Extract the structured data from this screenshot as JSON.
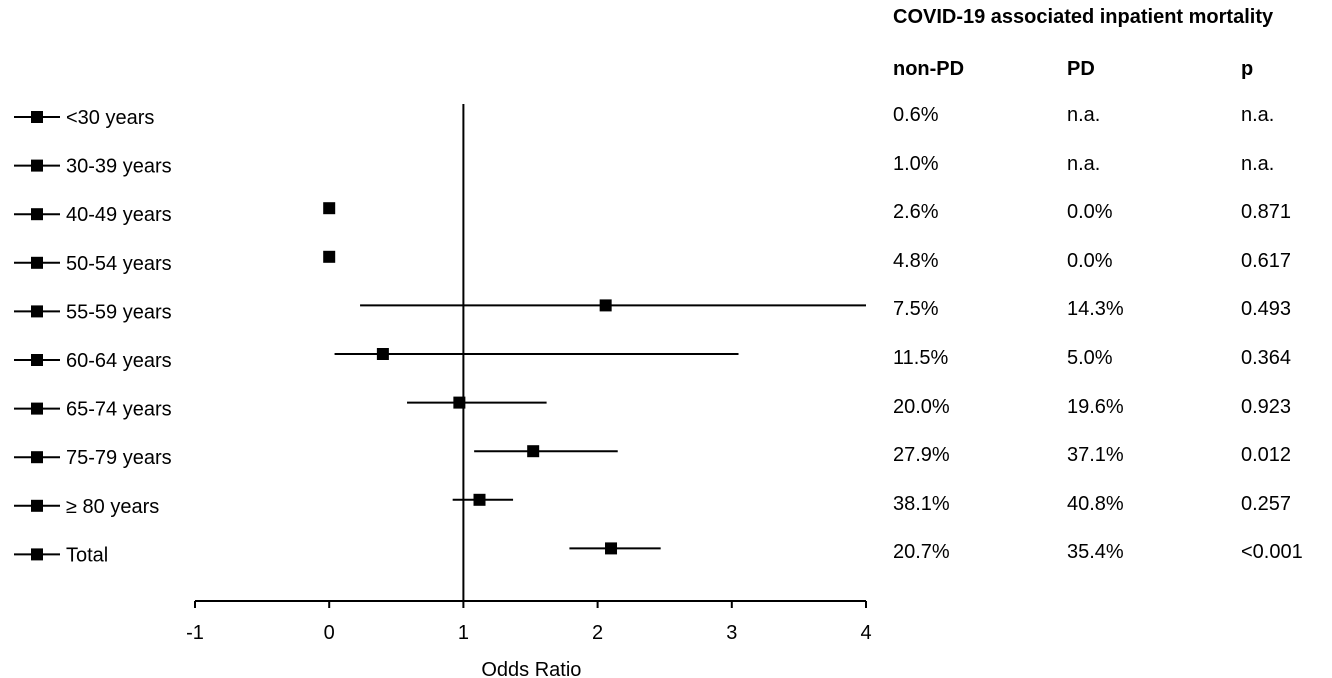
{
  "chart_data": {
    "type": "forest",
    "xlabel": "Odds Ratio",
    "xlim": [
      -1,
      4
    ],
    "xticks": [
      -1,
      0,
      1,
      2,
      3,
      4
    ],
    "reference_line": 1,
    "legend_marker": "square-with-whisker",
    "rows": [
      {
        "label": "<30 years",
        "or": null,
        "ci_low": null,
        "ci_high": null
      },
      {
        "label": "30-39 years",
        "or": null,
        "ci_low": null,
        "ci_high": null
      },
      {
        "label": "40-49 years",
        "or": 0.0,
        "ci_low": null,
        "ci_high": null
      },
      {
        "label": "50-54 years",
        "or": 0.0,
        "ci_low": null,
        "ci_high": null
      },
      {
        "label": "55-59 years",
        "or": 2.06,
        "ci_low": 0.23,
        "ci_high": 4.0
      },
      {
        "label": "60-64 years",
        "or": 0.4,
        "ci_low": 0.04,
        "ci_high": 3.05
      },
      {
        "label": "65-74 years",
        "or": 0.97,
        "ci_low": 0.58,
        "ci_high": 1.62
      },
      {
        "label": "75-79 years",
        "or": 1.52,
        "ci_low": 1.08,
        "ci_high": 2.15
      },
      {
        "label": "≥ 80 years",
        "or": 1.12,
        "ci_low": 0.92,
        "ci_high": 1.37
      },
      {
        "label": "Total",
        "or": 2.1,
        "ci_low": 1.79,
        "ci_high": 2.47
      }
    ]
  },
  "table": {
    "title": "COVID-19 associated inpatient mortality",
    "columns": [
      "non-PD",
      "PD",
      "p"
    ],
    "rows": [
      [
        "0.6%",
        "n.a.",
        "n.a."
      ],
      [
        "1.0%",
        "n.a.",
        "n.a."
      ],
      [
        "2.6%",
        "0.0%",
        "0.871"
      ],
      [
        "4.8%",
        "0.0%",
        "0.617"
      ],
      [
        "7.5%",
        "14.3%",
        "0.493"
      ],
      [
        "11.5%",
        "5.0%",
        "0.364"
      ],
      [
        "20.0%",
        "19.6%",
        "0.923"
      ],
      [
        "27.9%",
        "37.1%",
        "0.012"
      ],
      [
        "38.1%",
        "40.8%",
        "0.257"
      ],
      [
        "20.7%",
        "35.4%",
        "<0.001"
      ]
    ]
  }
}
